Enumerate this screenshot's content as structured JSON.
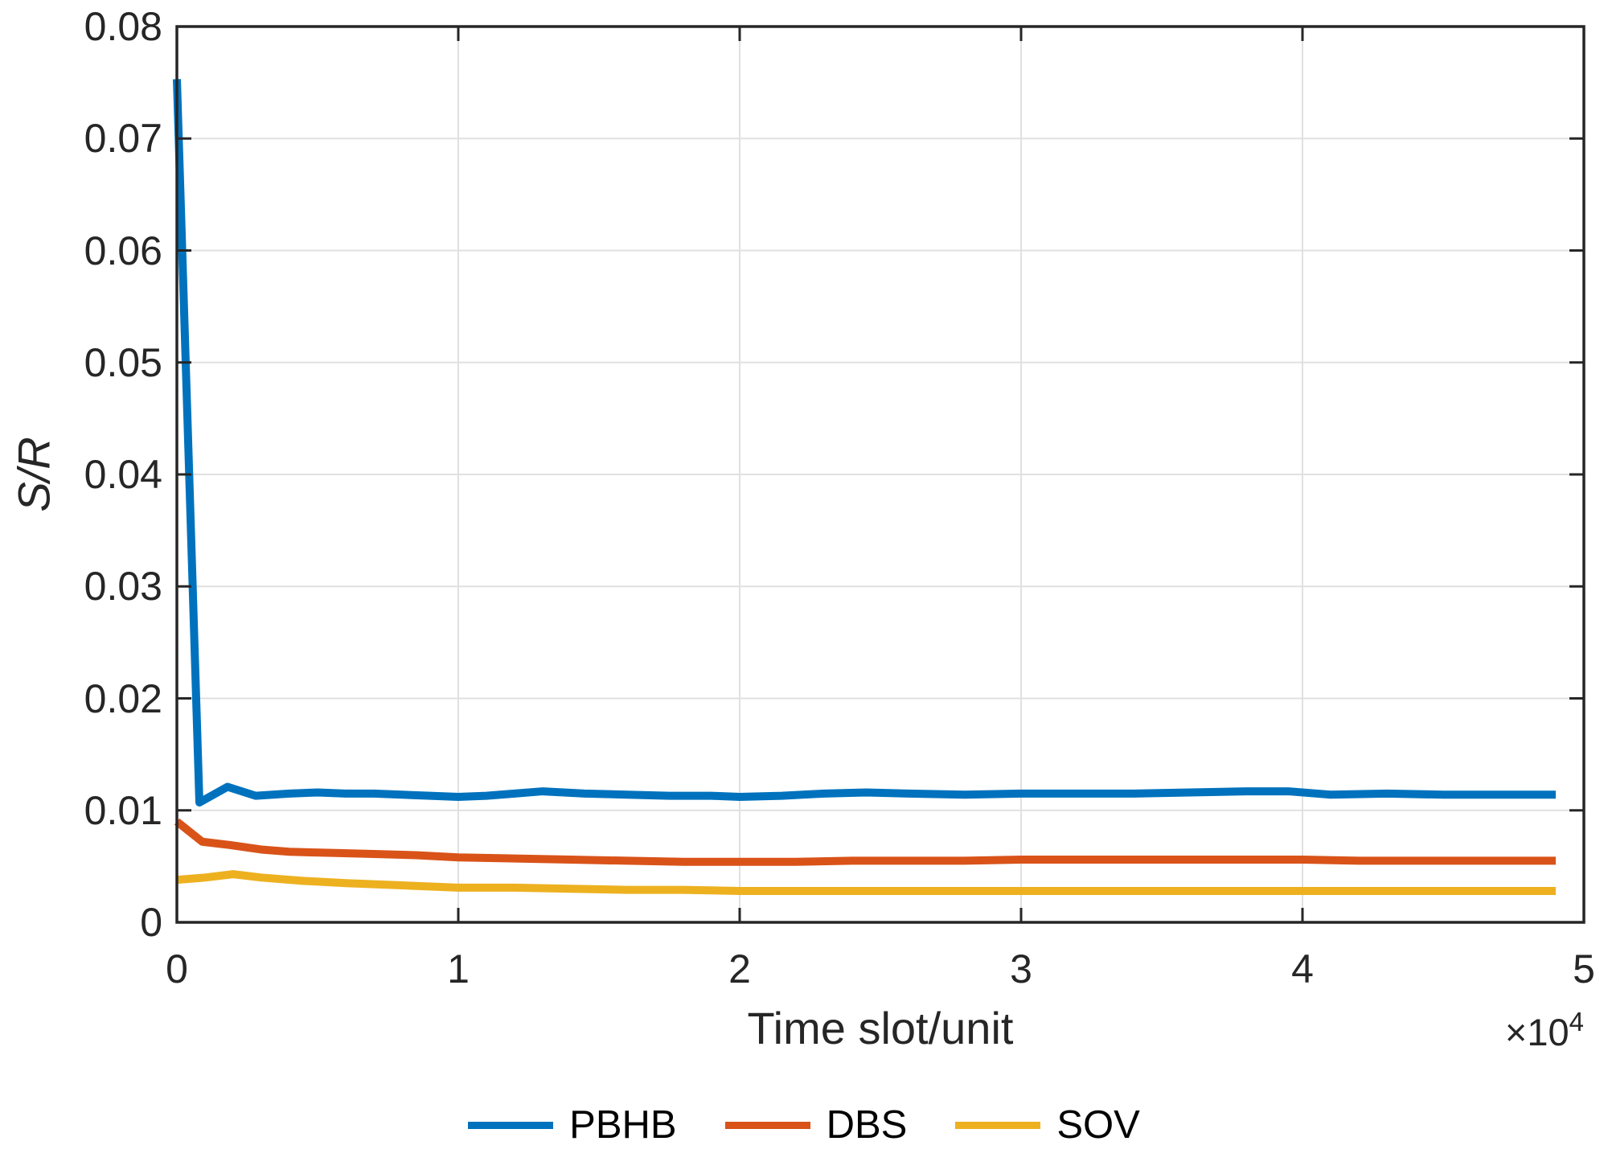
{
  "chart_data": {
    "type": "line",
    "title": "",
    "xlabel": "Time slot/unit",
    "ylabel": "S/R",
    "x_axis_multiplier": "×10",
    "x_axis_multiplier_exponent": "4",
    "xlim": [
      0,
      5
    ],
    "ylim": [
      0,
      0.08
    ],
    "xticks": [
      0,
      1,
      2,
      3,
      4,
      5
    ],
    "xtick_labels": [
      "0",
      "1",
      "2",
      "3",
      "4",
      "5"
    ],
    "yticks": [
      0,
      0.01,
      0.02,
      0.03,
      0.04,
      0.05,
      0.06,
      0.07,
      0.08
    ],
    "ytick_labels": [
      "0",
      "0.01",
      "0.02",
      "0.03",
      "0.04",
      "0.05",
      "0.06",
      "0.07",
      "0.08"
    ],
    "grid": true,
    "legend_position": "below-plot-horizontal",
    "axis_color": "#262626",
    "grid_color": "#e0e0e0",
    "background_color": "#ffffff",
    "series": [
      {
        "name": "PBHB",
        "color": "#0072BD",
        "x": [
          0,
          0.08,
          0.18,
          0.28,
          0.4,
          0.5,
          0.6,
          0.7,
          0.8,
          0.9,
          1.0,
          1.1,
          1.2,
          1.3,
          1.45,
          1.6,
          1.75,
          1.9,
          2.0,
          2.15,
          2.3,
          2.45,
          2.6,
          2.8,
          3.0,
          3.2,
          3.4,
          3.6,
          3.8,
          3.95,
          4.1,
          4.3,
          4.5,
          4.7,
          4.9
        ],
        "y": [
          0.0753,
          0.0107,
          0.0121,
          0.0113,
          0.0115,
          0.0116,
          0.0115,
          0.0115,
          0.0114,
          0.0113,
          0.0112,
          0.0113,
          0.0115,
          0.0117,
          0.0115,
          0.0114,
          0.0113,
          0.0113,
          0.0112,
          0.0113,
          0.0115,
          0.0116,
          0.0115,
          0.0114,
          0.0115,
          0.0115,
          0.0115,
          0.0116,
          0.0117,
          0.0117,
          0.0114,
          0.0115,
          0.0114,
          0.0114,
          0.0114
        ]
      },
      {
        "name": "DBS",
        "color": "#D95319",
        "x": [
          0,
          0.09,
          0.19,
          0.3,
          0.4,
          0.55,
          0.7,
          0.85,
          1.0,
          1.2,
          1.4,
          1.6,
          1.8,
          2.0,
          2.2,
          2.4,
          2.6,
          2.8,
          3.0,
          3.2,
          3.4,
          3.6,
          3.8,
          4.0,
          4.2,
          4.4,
          4.6,
          4.8,
          4.9
        ],
        "y": [
          0.009,
          0.0072,
          0.0069,
          0.0065,
          0.0063,
          0.0062,
          0.0061,
          0.006,
          0.0058,
          0.0057,
          0.0056,
          0.0055,
          0.0054,
          0.0054,
          0.0054,
          0.0055,
          0.0055,
          0.0055,
          0.0056,
          0.0056,
          0.0056,
          0.0056,
          0.0056,
          0.0056,
          0.0055,
          0.0055,
          0.0055,
          0.0055,
          0.0055
        ]
      },
      {
        "name": "SOV",
        "color": "#EDB120",
        "x": [
          0,
          0.1,
          0.2,
          0.3,
          0.45,
          0.6,
          0.8,
          1.0,
          1.2,
          1.4,
          1.6,
          1.8,
          2.0,
          2.3,
          2.6,
          2.9,
          3.2,
          3.5,
          3.8,
          4.1,
          4.4,
          4.7,
          4.9
        ],
        "y": [
          0.0038,
          0.004,
          0.0043,
          0.004,
          0.0037,
          0.0035,
          0.0033,
          0.0031,
          0.0031,
          0.003,
          0.0029,
          0.0029,
          0.0028,
          0.0028,
          0.0028,
          0.0028,
          0.0028,
          0.0028,
          0.0028,
          0.0028,
          0.0028,
          0.0028,
          0.0028
        ]
      }
    ]
  }
}
